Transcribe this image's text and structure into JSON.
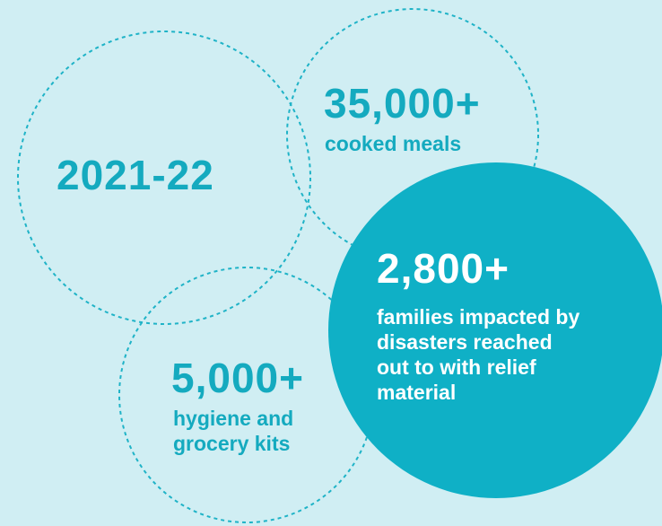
{
  "year": "2021-22",
  "meals": {
    "value": "35,000+",
    "label": "cooked meals"
  },
  "kits": {
    "value": "5,000+",
    "label_line1": "hygiene and",
    "label_line2": "grocery kits"
  },
  "families": {
    "value": "2,800+",
    "label_line1": "families impacted by",
    "label_line2": "disasters reached",
    "label_line3": "out to with relief",
    "label_line4": "material"
  },
  "colors": {
    "background": "#d0eef3",
    "accent": "#14aabf",
    "filled_circle": "#0fb0c6",
    "text_on_fill": "#ffffff"
  }
}
